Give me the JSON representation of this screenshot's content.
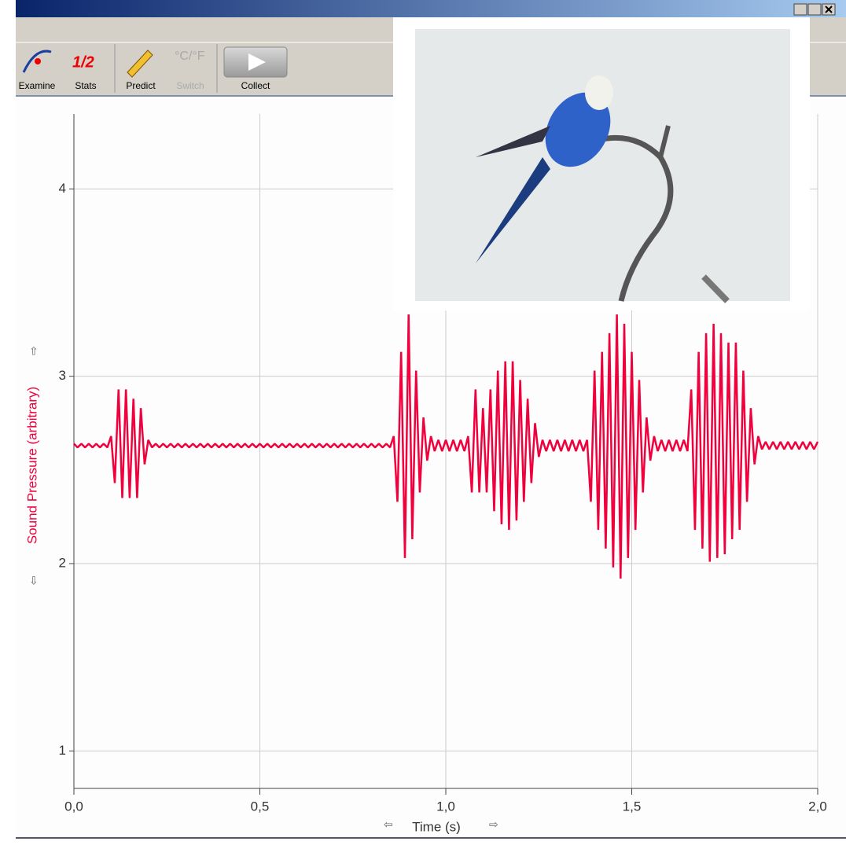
{
  "toolbar": {
    "buttons": [
      "Examine",
      "Stats",
      "Predict",
      "Switch",
      "Collect"
    ]
  },
  "chart_data": {
    "type": "line",
    "y_label": "Sound Pressure (arbitrary)",
    "x_label": "Time (s)",
    "xlim": [
      0,
      2
    ],
    "ylim": [
      0.8,
      4.4
    ],
    "xticks": [
      {
        "value": 0,
        "label": "0,0"
      },
      {
        "value": 0.5,
        "label": "0,5"
      },
      {
        "value": 1,
        "label": "1,0"
      },
      {
        "value": 1.5,
        "label": "1,5"
      },
      {
        "value": 2,
        "label": "2,0"
      }
    ],
    "yticks": [
      1,
      2,
      3,
      4
    ],
    "grid": true,
    "x": [
      0,
      0.01,
      0.02,
      0.03,
      0.04,
      0.05,
      0.06,
      0.07,
      0.08,
      0.09,
      0.1,
      0.11,
      0.12,
      0.13,
      0.14,
      0.15,
      0.16,
      0.17,
      0.18,
      0.19,
      0.2,
      0.21,
      0.22,
      0.23,
      0.24,
      0.25,
      0.26,
      0.27,
      0.28,
      0.29,
      0.3,
      0.31,
      0.32,
      0.33,
      0.34,
      0.35,
      0.36,
      0.37,
      0.38,
      0.39,
      0.4,
      0.41,
      0.42,
      0.43,
      0.44,
      0.45,
      0.46,
      0.47,
      0.48,
      0.49,
      0.5,
      0.51,
      0.52,
      0.53,
      0.54,
      0.55,
      0.56,
      0.57,
      0.58,
      0.59,
      0.6,
      0.61,
      0.62,
      0.63,
      0.64,
      0.65,
      0.66,
      0.67,
      0.68,
      0.69,
      0.7,
      0.71,
      0.72,
      0.73,
      0.74,
      0.75,
      0.76,
      0.77,
      0.78,
      0.79,
      0.8,
      0.81,
      0.82,
      0.83,
      0.84,
      0.85,
      0.86,
      0.87,
      0.88,
      0.89,
      0.9,
      0.91,
      0.92,
      0.93,
      0.94,
      0.95,
      0.96,
      0.97,
      0.98,
      0.99,
      1,
      1.01,
      1.02,
      1.03,
      1.04,
      1.05,
      1.06,
      1.07,
      1.08,
      1.09,
      1.1,
      1.11,
      1.12,
      1.13,
      1.14,
      1.15,
      1.16,
      1.17,
      1.18,
      1.19,
      1.2,
      1.21,
      1.22,
      1.23,
      1.24,
      1.25,
      1.26,
      1.27,
      1.28,
      1.29,
      1.3,
      1.31,
      1.32,
      1.33,
      1.34,
      1.35,
      1.36,
      1.37,
      1.38,
      1.39,
      1.4,
      1.41,
      1.42,
      1.43,
      1.44,
      1.45,
      1.46,
      1.47,
      1.48,
      1.49,
      1.5,
      1.51,
      1.52,
      1.53,
      1.54,
      1.55,
      1.56,
      1.57,
      1.58,
      1.59,
      1.6,
      1.61,
      1.62,
      1.63,
      1.64,
      1.65,
      1.66,
      1.67,
      1.68,
      1.69,
      1.7,
      1.71,
      1.72,
      1.73,
      1.74,
      1.75,
      1.76,
      1.77,
      1.78,
      1.79,
      1.8,
      1.81,
      1.82,
      1.83,
      1.84,
      1.85,
      1.86,
      1.87,
      1.88,
      1.89,
      1.9,
      1.91,
      1.92,
      1.93,
      1.94,
      1.95,
      1.96,
      1.97,
      1.98,
      1.99,
      2
    ],
    "series": [
      {
        "color": "#f0003c",
        "values": [
          2.64,
          2.62,
          2.64,
          2.62,
          2.64,
          2.62,
          2.64,
          2.62,
          2.64,
          2.62,
          2.68,
          2.43,
          2.93,
          2.35,
          2.93,
          2.35,
          2.88,
          2.35,
          2.83,
          2.53,
          2.66,
          2.62,
          2.64,
          2.62,
          2.64,
          2.62,
          2.64,
          2.62,
          2.64,
          2.62,
          2.64,
          2.62,
          2.64,
          2.62,
          2.64,
          2.62,
          2.64,
          2.62,
          2.64,
          2.62,
          2.64,
          2.62,
          2.64,
          2.62,
          2.64,
          2.62,
          2.64,
          2.62,
          2.64,
          2.62,
          2.64,
          2.62,
          2.64,
          2.62,
          2.64,
          2.62,
          2.64,
          2.62,
          2.64,
          2.62,
          2.64,
          2.62,
          2.64,
          2.62,
          2.64,
          2.62,
          2.64,
          2.62,
          2.64,
          2.62,
          2.64,
          2.62,
          2.64,
          2.62,
          2.64,
          2.62,
          2.64,
          2.62,
          2.64,
          2.62,
          2.64,
          2.62,
          2.64,
          2.62,
          2.64,
          2.62,
          2.68,
          2.33,
          3.13,
          2.03,
          3.33,
          2.13,
          3.03,
          2.38,
          2.78,
          2.55,
          2.68,
          2.6,
          2.66,
          2.6,
          2.66,
          2.6,
          2.66,
          2.6,
          2.66,
          2.6,
          2.68,
          2.38,
          2.93,
          2.38,
          2.83,
          2.38,
          2.93,
          2.28,
          3.03,
          2.21,
          3.08,
          2.18,
          3.08,
          2.23,
          2.98,
          2.33,
          2.88,
          2.43,
          2.75,
          2.57,
          2.66,
          2.6,
          2.66,
          2.6,
          2.66,
          2.6,
          2.66,
          2.6,
          2.66,
          2.6,
          2.66,
          2.6,
          2.66,
          2.33,
          3.03,
          2.18,
          3.13,
          2.08,
          3.23,
          1.98,
          3.33,
          1.92,
          3.28,
          2.03,
          3.13,
          2.18,
          2.98,
          2.38,
          2.78,
          2.55,
          2.68,
          2.6,
          2.66,
          2.6,
          2.66,
          2.6,
          2.66,
          2.6,
          2.66,
          2.6,
          2.93,
          2.18,
          3.13,
          2.08,
          3.23,
          2.01,
          3.28,
          2.03,
          3.23,
          2.05,
          3.18,
          2.13,
          3.18,
          2.18,
          3.03,
          2.33,
          2.83,
          2.53,
          2.68,
          2.61,
          2.65,
          2.61,
          2.65,
          2.61,
          2.65,
          2.61,
          2.65,
          2.61,
          2.65,
          2.61,
          2.65,
          2.61,
          2.65,
          2.61,
          2.65
        ]
      }
    ]
  }
}
